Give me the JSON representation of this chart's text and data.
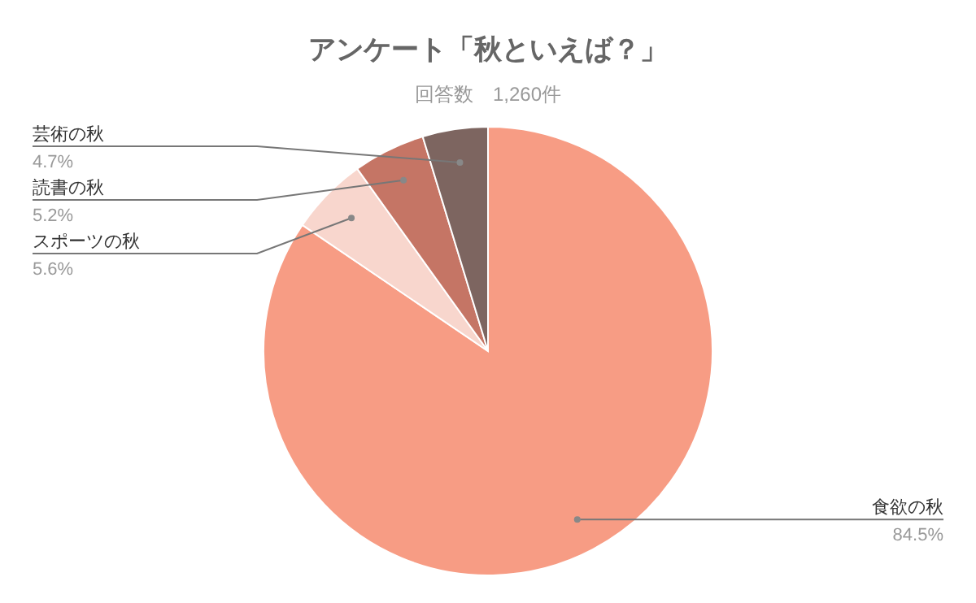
{
  "chart_data": {
    "type": "pie",
    "title": "アンケート「秋といえば？」",
    "subtitle": "回答数　1,260件",
    "categories": [
      "食欲の秋",
      "スポーツの秋",
      "読書の秋",
      "芸術の秋"
    ],
    "values": [
      84.5,
      5.6,
      5.2,
      4.7
    ],
    "value_labels": [
      "84.5%",
      "5.6%",
      "5.2%",
      "4.7%"
    ],
    "colors": [
      "#f79c84",
      "#f8d6cd",
      "#c57565",
      "#7d6560"
    ]
  }
}
